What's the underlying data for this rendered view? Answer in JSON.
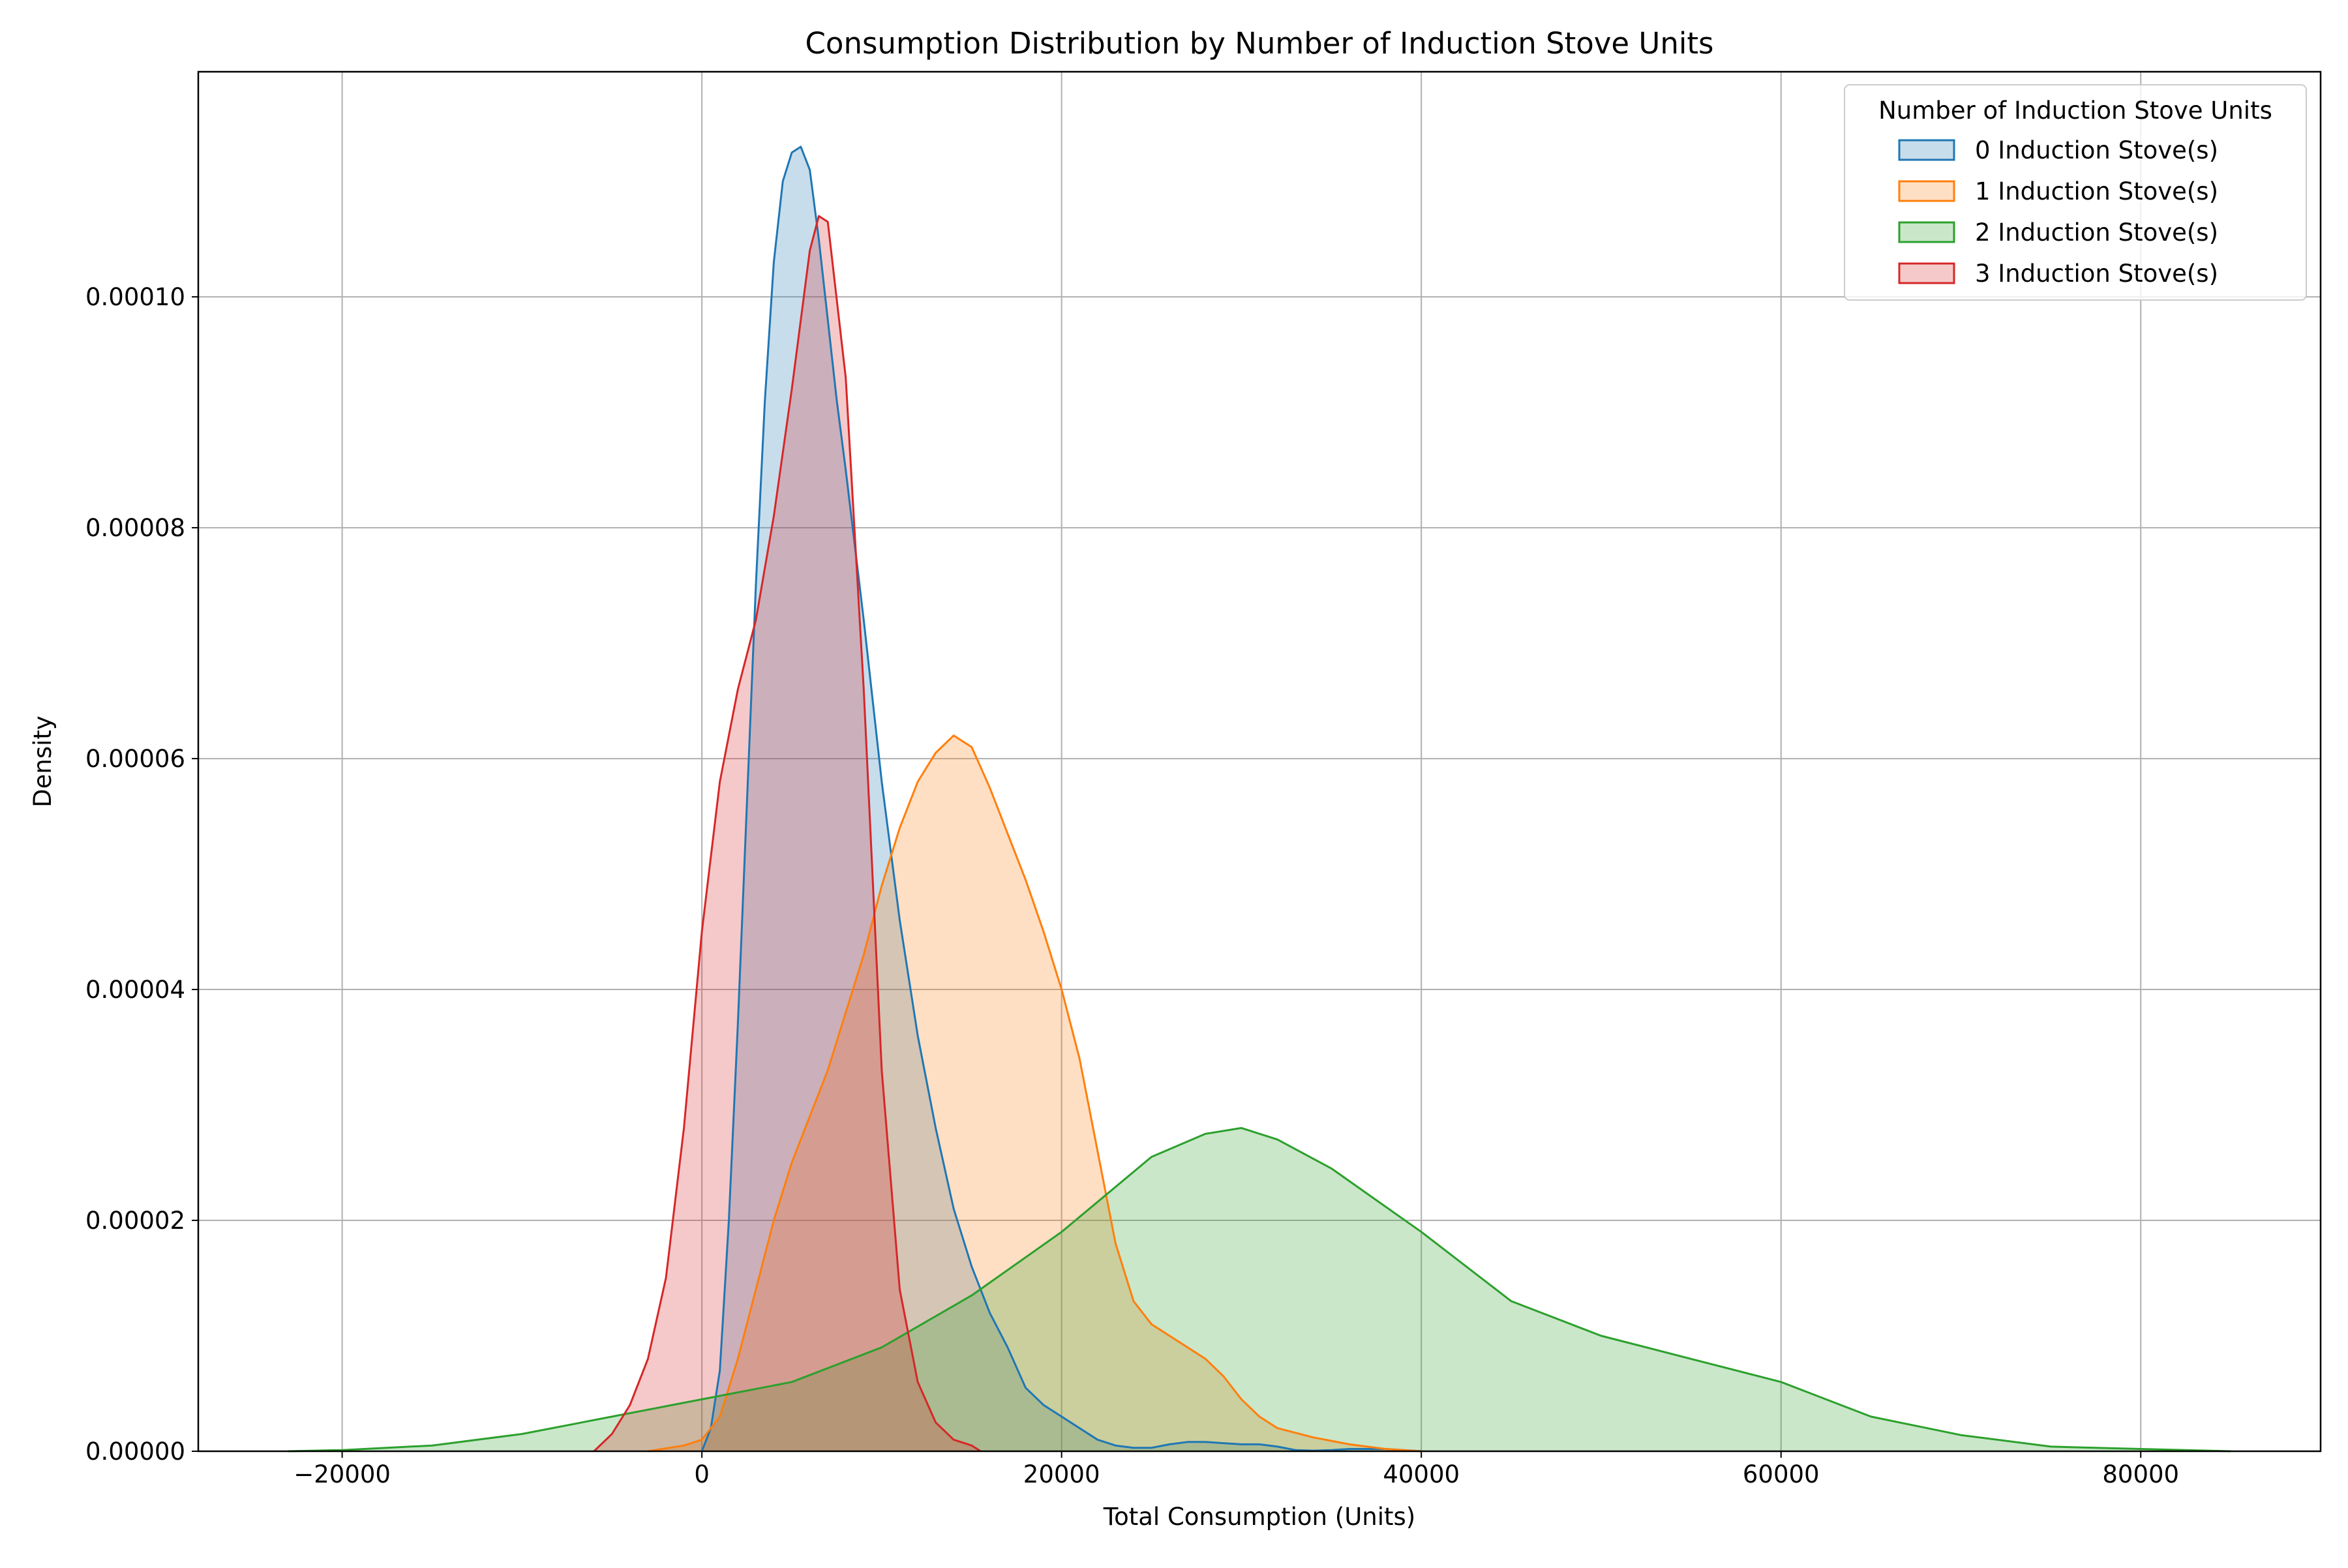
{
  "chart_data": {
    "type": "area",
    "subtype": "kde",
    "title": "Consumption Distribution by Number of Induction Stove Units",
    "xlabel": "Total Consumption (Units)",
    "ylabel": "Density",
    "xlim": [
      -28000,
      90000
    ],
    "ylim": [
      0,
      0.0001195
    ],
    "xticks": [
      -20000,
      0,
      20000,
      40000,
      60000,
      80000
    ],
    "xtick_labels": [
      "−20000",
      "0",
      "20000",
      "40000",
      "60000",
      "80000"
    ],
    "yticks": [
      0,
      2e-05,
      4e-05,
      6e-05,
      8e-05,
      0.0001
    ],
    "ytick_labels": [
      "0.00000",
      "0.00002",
      "0.00004",
      "0.00006",
      "0.00008",
      "0.00010"
    ],
    "grid": true,
    "legend_title": "Number of Induction Stove Units",
    "legend_position": "top-right",
    "series": [
      {
        "name": "0 Induction Stove(s)",
        "color": "#1f77b4",
        "points": [
          [
            0,
            0
          ],
          [
            500,
            2e-06
          ],
          [
            1000,
            7e-06
          ],
          [
            1500,
            2e-05
          ],
          [
            2000,
            3.7e-05
          ],
          [
            2500,
            5.6e-05
          ],
          [
            3000,
            7.5e-05
          ],
          [
            3500,
            9.1e-05
          ],
          [
            4000,
            0.000103
          ],
          [
            4500,
            0.00011
          ],
          [
            5000,
            0.0001125
          ],
          [
            5500,
            0.000113
          ],
          [
            6000,
            0.000111
          ],
          [
            6500,
            0.000105
          ],
          [
            7000,
            9.8e-05
          ],
          [
            7500,
            9.1e-05
          ],
          [
            8000,
            8.5e-05
          ],
          [
            9000,
            7.2e-05
          ],
          [
            10000,
            5.8e-05
          ],
          [
            11000,
            4.6e-05
          ],
          [
            12000,
            3.6e-05
          ],
          [
            13000,
            2.8e-05
          ],
          [
            14000,
            2.1e-05
          ],
          [
            15000,
            1.6e-05
          ],
          [
            16000,
            1.2e-05
          ],
          [
            17000,
            9e-06
          ],
          [
            18000,
            5.5e-06
          ],
          [
            19000,
            4e-06
          ],
          [
            20000,
            3e-06
          ],
          [
            21000,
            2e-06
          ],
          [
            22000,
            1e-06
          ],
          [
            23000,
            5e-07
          ],
          [
            24000,
            3e-07
          ],
          [
            25000,
            3e-07
          ],
          [
            26000,
            6e-07
          ],
          [
            27000,
            8e-07
          ],
          [
            28000,
            8e-07
          ],
          [
            29000,
            7e-07
          ],
          [
            30000,
            6e-07
          ],
          [
            31000,
            6e-07
          ],
          [
            32000,
            4e-07
          ],
          [
            33000,
            1e-07
          ],
          [
            34000,
            5e-08
          ],
          [
            35000,
            1e-07
          ],
          [
            36000,
            2e-07
          ],
          [
            37000,
            2e-07
          ],
          [
            38000,
            2e-07
          ],
          [
            39000,
            1e-07
          ],
          [
            40000,
            0
          ]
        ]
      },
      {
        "name": "1 Induction Stove(s)",
        "color": "#ff7f0e",
        "points": [
          [
            -3000,
            0
          ],
          [
            -1000,
            5e-07
          ],
          [
            0,
            1e-06
          ],
          [
            1000,
            3e-06
          ],
          [
            2000,
            8e-06
          ],
          [
            3000,
            1.4e-05
          ],
          [
            4000,
            2e-05
          ],
          [
            5000,
            2.5e-05
          ],
          [
            6000,
            2.9e-05
          ],
          [
            7000,
            3.3e-05
          ],
          [
            8000,
            3.8e-05
          ],
          [
            9000,
            4.3e-05
          ],
          [
            10000,
            4.9e-05
          ],
          [
            11000,
            5.4e-05
          ],
          [
            12000,
            5.8e-05
          ],
          [
            13000,
            6.05e-05
          ],
          [
            14000,
            6.2e-05
          ],
          [
            15000,
            6.1e-05
          ],
          [
            16000,
            5.75e-05
          ],
          [
            17000,
            5.35e-05
          ],
          [
            18000,
            4.95e-05
          ],
          [
            19000,
            4.5e-05
          ],
          [
            20000,
            4e-05
          ],
          [
            21000,
            3.4e-05
          ],
          [
            22000,
            2.6e-05
          ],
          [
            23000,
            1.8e-05
          ],
          [
            24000,
            1.3e-05
          ],
          [
            25000,
            1.1e-05
          ],
          [
            26000,
            1e-05
          ],
          [
            27000,
            9e-06
          ],
          [
            28000,
            8e-06
          ],
          [
            29000,
            6.5e-06
          ],
          [
            30000,
            4.5e-06
          ],
          [
            31000,
            3e-06
          ],
          [
            32000,
            2e-06
          ],
          [
            34000,
            1.2e-06
          ],
          [
            36000,
            6e-07
          ],
          [
            38000,
            2e-07
          ],
          [
            40000,
            0
          ]
        ]
      },
      {
        "name": "2 Induction Stove(s)",
        "color": "#2ca02c",
        "points": [
          [
            -23000,
            0
          ],
          [
            -20000,
            1e-07
          ],
          [
            -15000,
            5e-07
          ],
          [
            -10000,
            1.5e-06
          ],
          [
            -5000,
            3e-06
          ],
          [
            0,
            4.5e-06
          ],
          [
            5000,
            6e-06
          ],
          [
            10000,
            9e-06
          ],
          [
            15000,
            1.35e-05
          ],
          [
            20000,
            1.9e-05
          ],
          [
            25000,
            2.55e-05
          ],
          [
            28000,
            2.75e-05
          ],
          [
            30000,
            2.8e-05
          ],
          [
            32000,
            2.7e-05
          ],
          [
            35000,
            2.45e-05
          ],
          [
            40000,
            1.9e-05
          ],
          [
            45000,
            1.3e-05
          ],
          [
            50000,
            1e-05
          ],
          [
            55000,
            8e-06
          ],
          [
            60000,
            6e-06
          ],
          [
            65000,
            3e-06
          ],
          [
            70000,
            1.4e-06
          ],
          [
            75000,
            4e-07
          ],
          [
            80000,
            2e-07
          ],
          [
            85000,
            0
          ]
        ]
      },
      {
        "name": "3 Induction Stove(s)",
        "color": "#d62728",
        "points": [
          [
            -6000,
            0
          ],
          [
            -5000,
            1.5e-06
          ],
          [
            -4000,
            4e-06
          ],
          [
            -3000,
            8e-06
          ],
          [
            -2000,
            1.5e-05
          ],
          [
            -1000,
            2.8e-05
          ],
          [
            0,
            4.5e-05
          ],
          [
            1000,
            5.8e-05
          ],
          [
            2000,
            6.6e-05
          ],
          [
            3000,
            7.2e-05
          ],
          [
            4000,
            8.1e-05
          ],
          [
            5000,
            9.2e-05
          ],
          [
            6000,
            0.000104
          ],
          [
            6500,
            0.000107
          ],
          [
            7000,
            0.0001065
          ],
          [
            8000,
            9.3e-05
          ],
          [
            9000,
            6.6e-05
          ],
          [
            10000,
            3.3e-05
          ],
          [
            11000,
            1.4e-05
          ],
          [
            12000,
            6e-06
          ],
          [
            13000,
            2.5e-06
          ],
          [
            14000,
            1e-06
          ],
          [
            15000,
            5e-07
          ],
          [
            15500,
            0
          ]
        ]
      }
    ]
  }
}
